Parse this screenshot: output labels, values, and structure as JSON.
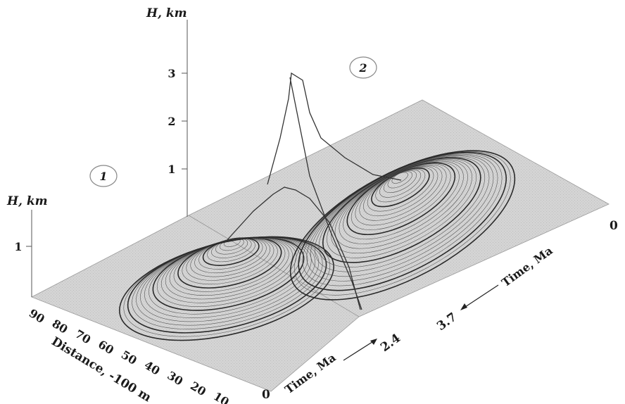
{
  "chart_data": {
    "type": "surface-3d",
    "panels": [
      {
        "marker": "1",
        "zlabel": "H, km",
        "zticks": [
          "1"
        ],
        "xlabel": "Distance, -100 m",
        "xticks": [
          "90",
          "80",
          "70",
          "60",
          "50",
          "40",
          "30",
          "20",
          "10"
        ],
        "ylabel": "Time, Ma",
        "ytick_start": "0",
        "ytick_end": "2.4",
        "peak_height_km": 1.3
      },
      {
        "marker": "2",
        "zlabel": "H, km",
        "zticks": [
          "1",
          "2",
          "3"
        ],
        "ylabel": "Time, Ma",
        "ytick_start": "0",
        "ytick_end": "3.7",
        "peak_height_km": 3.0
      }
    ]
  }
}
